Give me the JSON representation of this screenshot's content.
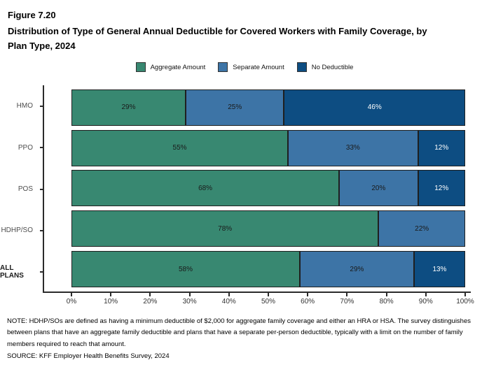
{
  "title": {
    "figure": "Figure 7.20",
    "text": "Distribution of Type of General Annual Deductible for Covered Workers with Family Coverage, by Plan Type, 2024"
  },
  "legend": {
    "items": [
      {
        "label": "Aggregate Amount",
        "color": "#388871"
      },
      {
        "label": "Separate Amount",
        "color": "#3D74A6"
      },
      {
        "label": "No Deductible",
        "color": "#0D4D82"
      }
    ]
  },
  "chart_data": {
    "type": "bar",
    "orientation": "horizontal",
    "stacked": true,
    "categories": [
      "HMO",
      "PPO",
      "POS",
      "HDHP/SO",
      "ALL PLANS"
    ],
    "series": [
      {
        "name": "Aggregate Amount",
        "color": "#388871",
        "label_color": "#1a1a1a",
        "values": [
          29,
          55,
          68,
          78,
          58
        ]
      },
      {
        "name": "Separate Amount",
        "color": "#3D74A6",
        "label_color": "#1a1a1a",
        "values": [
          25,
          33,
          20,
          22,
          29
        ]
      },
      {
        "name": "No Deductible",
        "color": "#0D4D82",
        "label_color": "#ffffff",
        "values": [
          46,
          12,
          12,
          0,
          13
        ]
      }
    ],
    "data_label_suffix": "%",
    "xlim": [
      0,
      100
    ],
    "x_ticks": [
      "0%",
      "10%",
      "20%",
      "30%",
      "40%",
      "50%",
      "60%",
      "70%",
      "80%",
      "90%",
      "100%"
    ],
    "legend_position": "top",
    "grid": false
  },
  "notes": {
    "note": "NOTE: HDHP/SOs are defined as having a minimum deductible of $2,000 for aggregate family coverage and either an HRA or HSA. The survey distinguishes between plans that have an aggregate family deductible and plans that have a separate per-person deductible, typically with a limit on the number of family members required to reach that amount.",
    "source": "SOURCE: KFF Employer Health Benefits Survey, 2024"
  }
}
